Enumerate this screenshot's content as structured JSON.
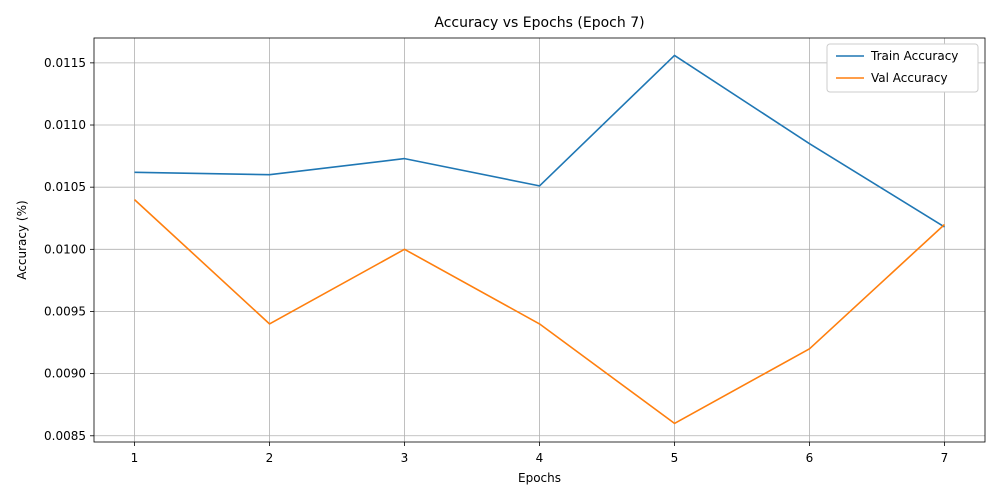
{
  "chart_data": {
    "type": "line",
    "title": "Accuracy vs Epochs (Epoch 7)",
    "xlabel": "Epochs",
    "ylabel": "Accuracy (%)",
    "x": [
      1,
      2,
      3,
      4,
      5,
      6,
      7
    ],
    "xticks": [
      "1",
      "2",
      "3",
      "4",
      "5",
      "6",
      "7"
    ],
    "xlim": [
      0.7,
      7.3
    ],
    "ylim": [
      0.00845,
      0.0117
    ],
    "yticks": [
      "0.0085",
      "0.0090",
      "0.0095",
      "0.0100",
      "0.0105",
      "0.0110",
      "0.0115"
    ],
    "ytick_values": [
      0.0085,
      0.009,
      0.0095,
      0.01,
      0.0105,
      0.011,
      0.0115
    ],
    "grid": true,
    "legend_position": "top-right",
    "series": [
      {
        "name": "Train Accuracy",
        "color": "#1f77b4",
        "values": [
          0.01062,
          0.0106,
          0.01073,
          0.01051,
          0.01156,
          0.01085,
          0.01018
        ]
      },
      {
        "name": "Val Accuracy",
        "color": "#ff7f0e",
        "values": [
          0.0104,
          0.0094,
          0.01,
          0.0094,
          0.0086,
          0.0092,
          0.0102
        ]
      }
    ]
  }
}
